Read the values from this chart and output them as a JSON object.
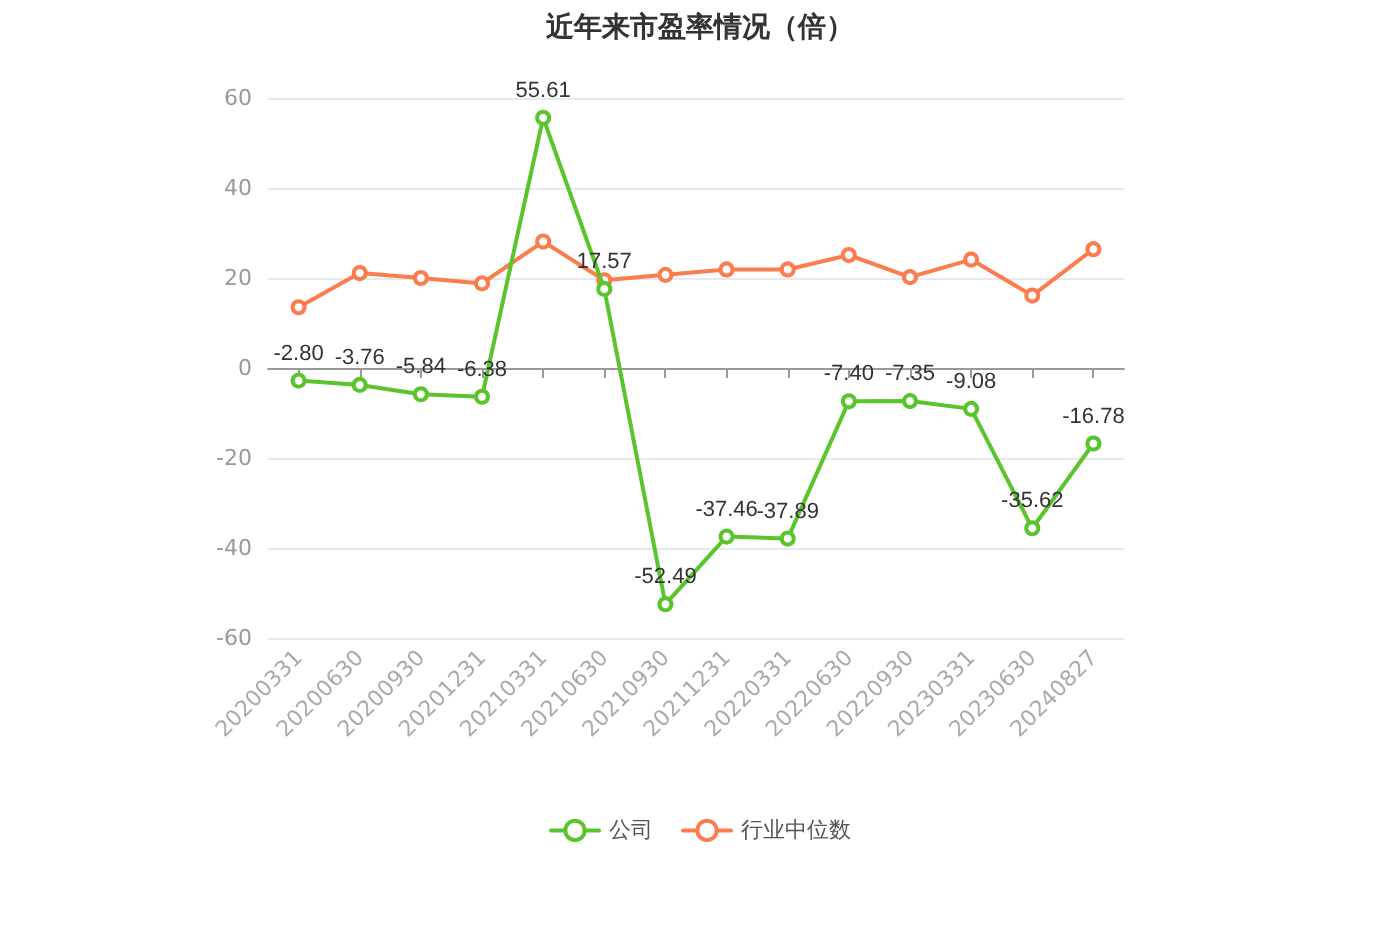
{
  "chart_data": {
    "type": "line",
    "title": "近年来市盈率情况（倍）",
    "categories": [
      "20200331",
      "20200630",
      "20200930",
      "20201231",
      "20210331",
      "20210630",
      "20210930",
      "20211231",
      "20220331",
      "20220630",
      "20220930",
      "20230331",
      "20230630",
      "20240827"
    ],
    "series": [
      {
        "name": "公司",
        "color": "#5ac42c",
        "values": [
          -2.8,
          -3.76,
          -5.84,
          -6.38,
          55.61,
          17.57,
          -52.49,
          -37.46,
          -37.89,
          -7.4,
          -7.35,
          -9.08,
          -35.62,
          -16.78
        ],
        "value_labels": [
          "-2.80",
          "-3.76",
          "-5.84",
          "-6.38",
          "55.61",
          "17.57",
          "-52.49",
          "-37.46",
          "-37.89",
          "-7.40",
          "-7.35",
          "-9.08",
          "-35.62",
          "-16.78"
        ]
      },
      {
        "name": "行业中位数",
        "color": "#fb7d4e",
        "values": [
          13.5,
          21.1,
          20.0,
          18.8,
          28.1,
          19.5,
          20.7,
          21.9,
          21.9,
          25.1,
          20.2,
          24.1,
          16.1,
          26.4
        ]
      }
    ],
    "ylim": [
      -60,
      60
    ],
    "yticks": [
      -60,
      -40,
      -20,
      0,
      20,
      40,
      60
    ],
    "grid": "y",
    "legend": "bottom",
    "marker": "circle",
    "line_style": "solid"
  }
}
